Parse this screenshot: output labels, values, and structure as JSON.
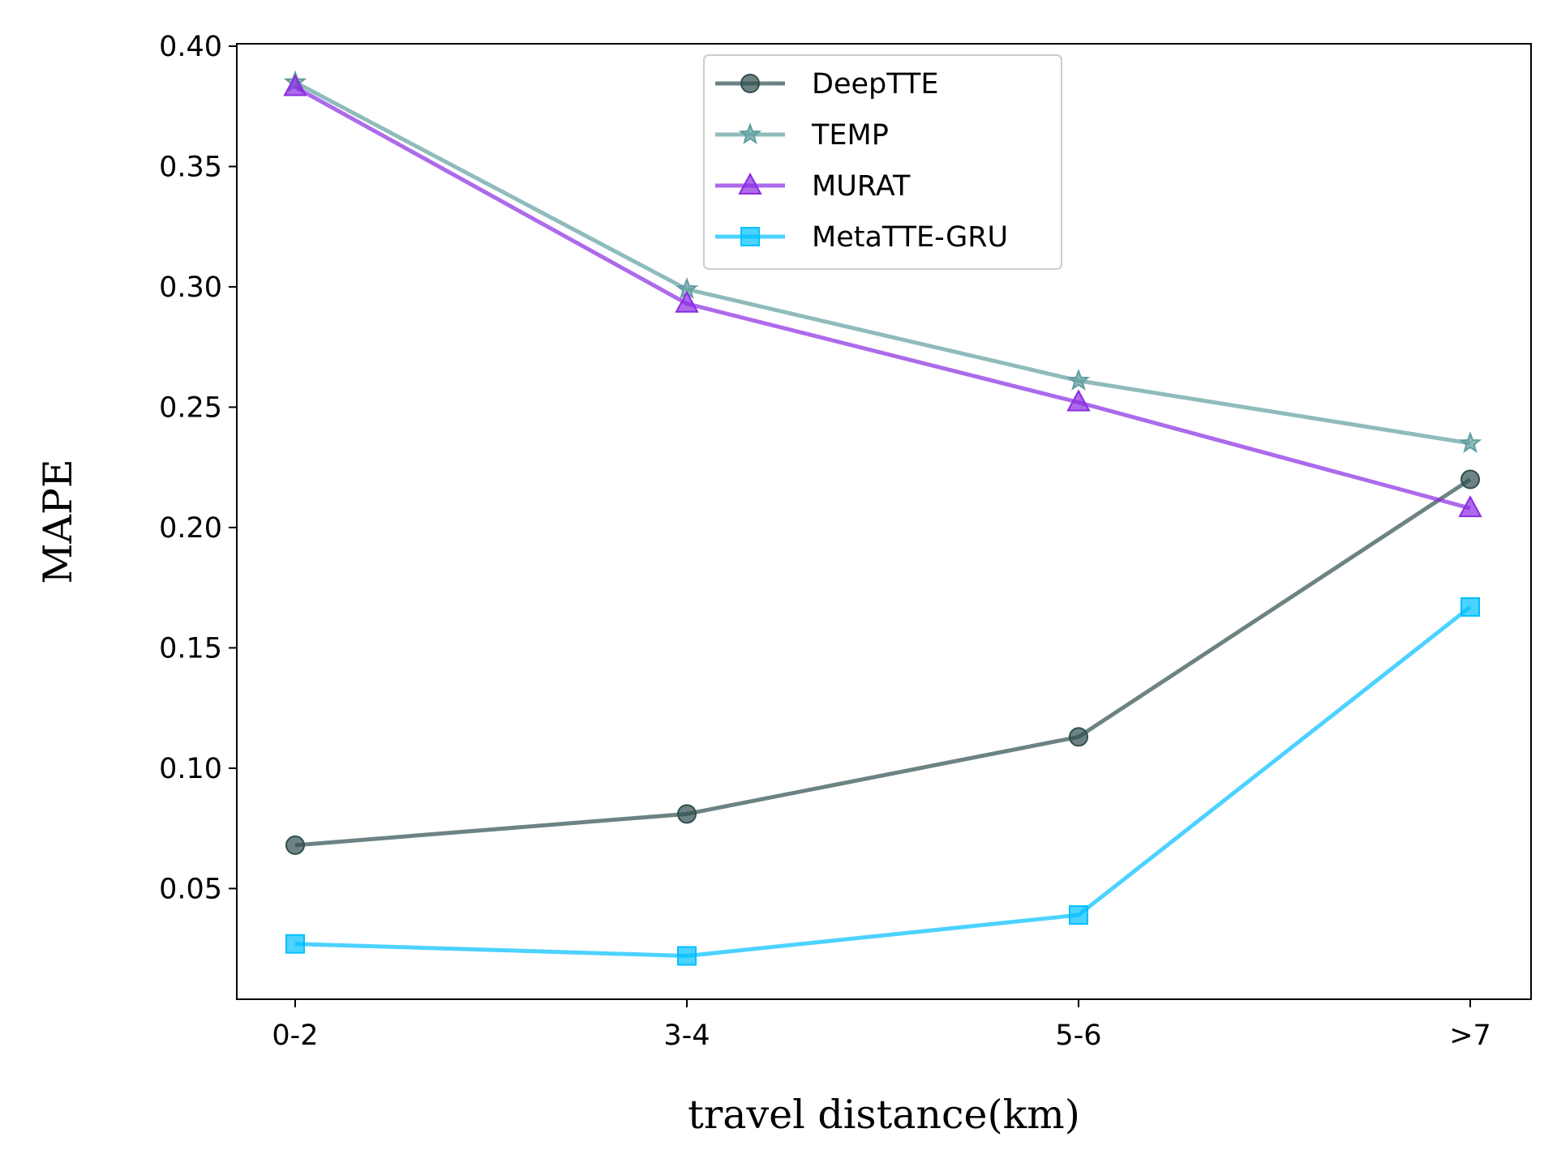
{
  "chart_data": {
    "type": "line",
    "title": "",
    "xlabel": "travel distance(km)",
    "ylabel": "MAPE",
    "categories": [
      "0-2",
      "3-4",
      "5-6",
      ">7"
    ],
    "ylim": [
      0.004,
      0.401
    ],
    "yticks": [
      0.05,
      0.1,
      0.15,
      0.2,
      0.25,
      0.3,
      0.35,
      0.4
    ],
    "ytick_labels": [
      "0.05",
      "0.10",
      "0.15",
      "0.20",
      "0.25",
      "0.30",
      "0.35",
      "0.40"
    ],
    "grid": false,
    "legend_position": "top-center",
    "series": [
      {
        "name": "DeepTTE",
        "values": [
          0.068,
          0.081,
          0.113,
          0.22
        ],
        "color": "#2f4f4f",
        "marker": "circle"
      },
      {
        "name": "TEMP",
        "values": [
          0.385,
          0.299,
          0.261,
          0.235
        ],
        "color": "#5f9ea0",
        "marker": "star"
      },
      {
        "name": "MURAT",
        "values": [
          0.383,
          0.293,
          0.252,
          0.208
        ],
        "color": "#8a2be2",
        "marker": "triangle"
      },
      {
        "name": "MetaTTE-GRU",
        "values": [
          0.027,
          0.022,
          0.039,
          0.167
        ],
        "color": "#00bfff",
        "marker": "square"
      }
    ]
  }
}
